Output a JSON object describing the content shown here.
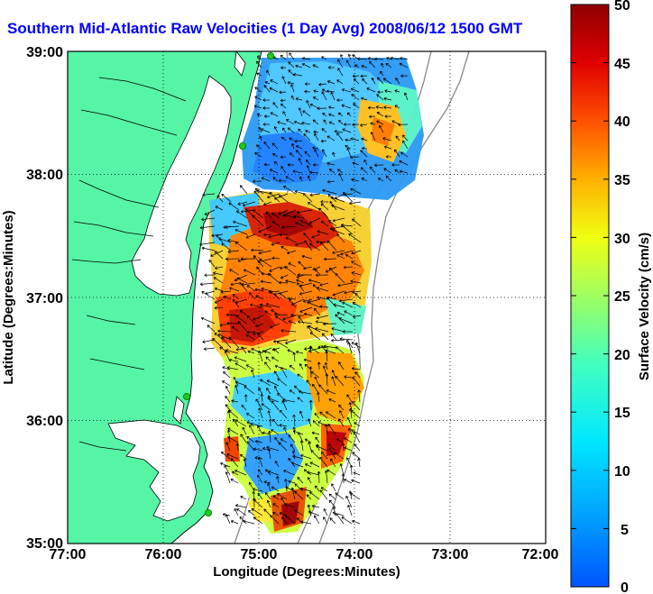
{
  "title": "Southern Mid-Atlantic Raw Velocities (1 Day Avg) 2008/06/12 1500 GMT",
  "map": {
    "xlabel": "Longitude (Degrees:Minutes)",
    "ylabel": "Latitude (Degrees:Minutes)",
    "lon_ticks": [
      "77:00",
      "76:00",
      "75:00",
      "74:00",
      "73:00",
      "72:00"
    ],
    "lat_ticks": [
      "39:00",
      "38:00",
      "37:00",
      "36:00",
      "35:00"
    ],
    "lon_range": [
      -77,
      -72
    ],
    "lat_range": [
      35,
      39
    ],
    "grid": "dotted",
    "land_color": "#55f5a5",
    "ocean_color": "#ffffff",
    "vector_color": "#000000"
  },
  "colorbar": {
    "label": "Surface Velocity (cm/s)",
    "ticks": [
      "0",
      "5",
      "10",
      "15",
      "20",
      "25",
      "30",
      "35",
      "40",
      "45",
      "50"
    ],
    "range": [
      0,
      50
    ],
    "colormap": "jet"
  }
}
